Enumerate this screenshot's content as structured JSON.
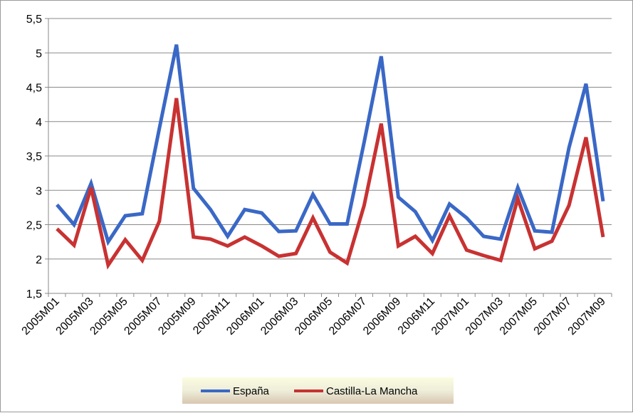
{
  "chart_data": {
    "type": "line",
    "title": "",
    "xlabel": "",
    "ylabel": "",
    "ylim": [
      1.5,
      5.5
    ],
    "y_ticks": [
      "1,5",
      "2",
      "2,5",
      "3",
      "3,5",
      "4",
      "4,5",
      "5",
      "5,5"
    ],
    "grid": "horizontal",
    "legend_position": "bottom",
    "x": [
      "2005M01",
      "2005M02",
      "2005M03",
      "2005M04",
      "2005M05",
      "2005M06",
      "2005M07",
      "2005M08",
      "2005M09",
      "2005M10",
      "2005M11",
      "2005M12",
      "2006M01",
      "2006M02",
      "2006M03",
      "2006M04",
      "2006M05",
      "2006M06",
      "2006M07",
      "2006M08",
      "2006M09",
      "2006M10",
      "2006M11",
      "2006M12",
      "2007M01",
      "2007M02",
      "2007M03",
      "2007M04",
      "2007M05",
      "2007M06",
      "2007M07",
      "2007M08",
      "2007M09"
    ],
    "x_tick_labels": [
      "2005M01",
      "2005M03",
      "2005M05",
      "2005M07",
      "2005M09",
      "2005M11",
      "2006M01",
      "2006M03",
      "2006M05",
      "2006M07",
      "2006M09",
      "2006M11",
      "2007M01",
      "2007M03",
      "2007M05",
      "2007M07",
      "2007M09"
    ],
    "series": [
      {
        "name": "España",
        "color": "#3a68c6",
        "values": [
          2.79,
          2.5,
          3.1,
          2.25,
          2.63,
          2.66,
          3.9,
          5.12,
          3.03,
          2.72,
          2.33,
          2.72,
          2.67,
          2.4,
          2.41,
          2.94,
          2.51,
          2.51,
          3.7,
          4.95,
          2.9,
          2.69,
          2.27,
          2.8,
          2.6,
          2.33,
          2.29,
          3.04,
          2.41,
          2.39,
          3.62,
          4.55,
          2.84
        ]
      },
      {
        "name": "Castilla-La Mancha",
        "color": "#c83232",
        "values": [
          2.44,
          2.2,
          3.04,
          1.91,
          2.28,
          1.98,
          2.55,
          4.34,
          2.32,
          2.29,
          2.19,
          2.32,
          2.19,
          2.04,
          2.08,
          2.6,
          2.1,
          1.94,
          2.78,
          3.97,
          2.19,
          2.33,
          2.08,
          2.63,
          2.13,
          2.05,
          1.98,
          2.88,
          2.15,
          2.26,
          2.78,
          3.77,
          2.32
        ]
      }
    ]
  }
}
